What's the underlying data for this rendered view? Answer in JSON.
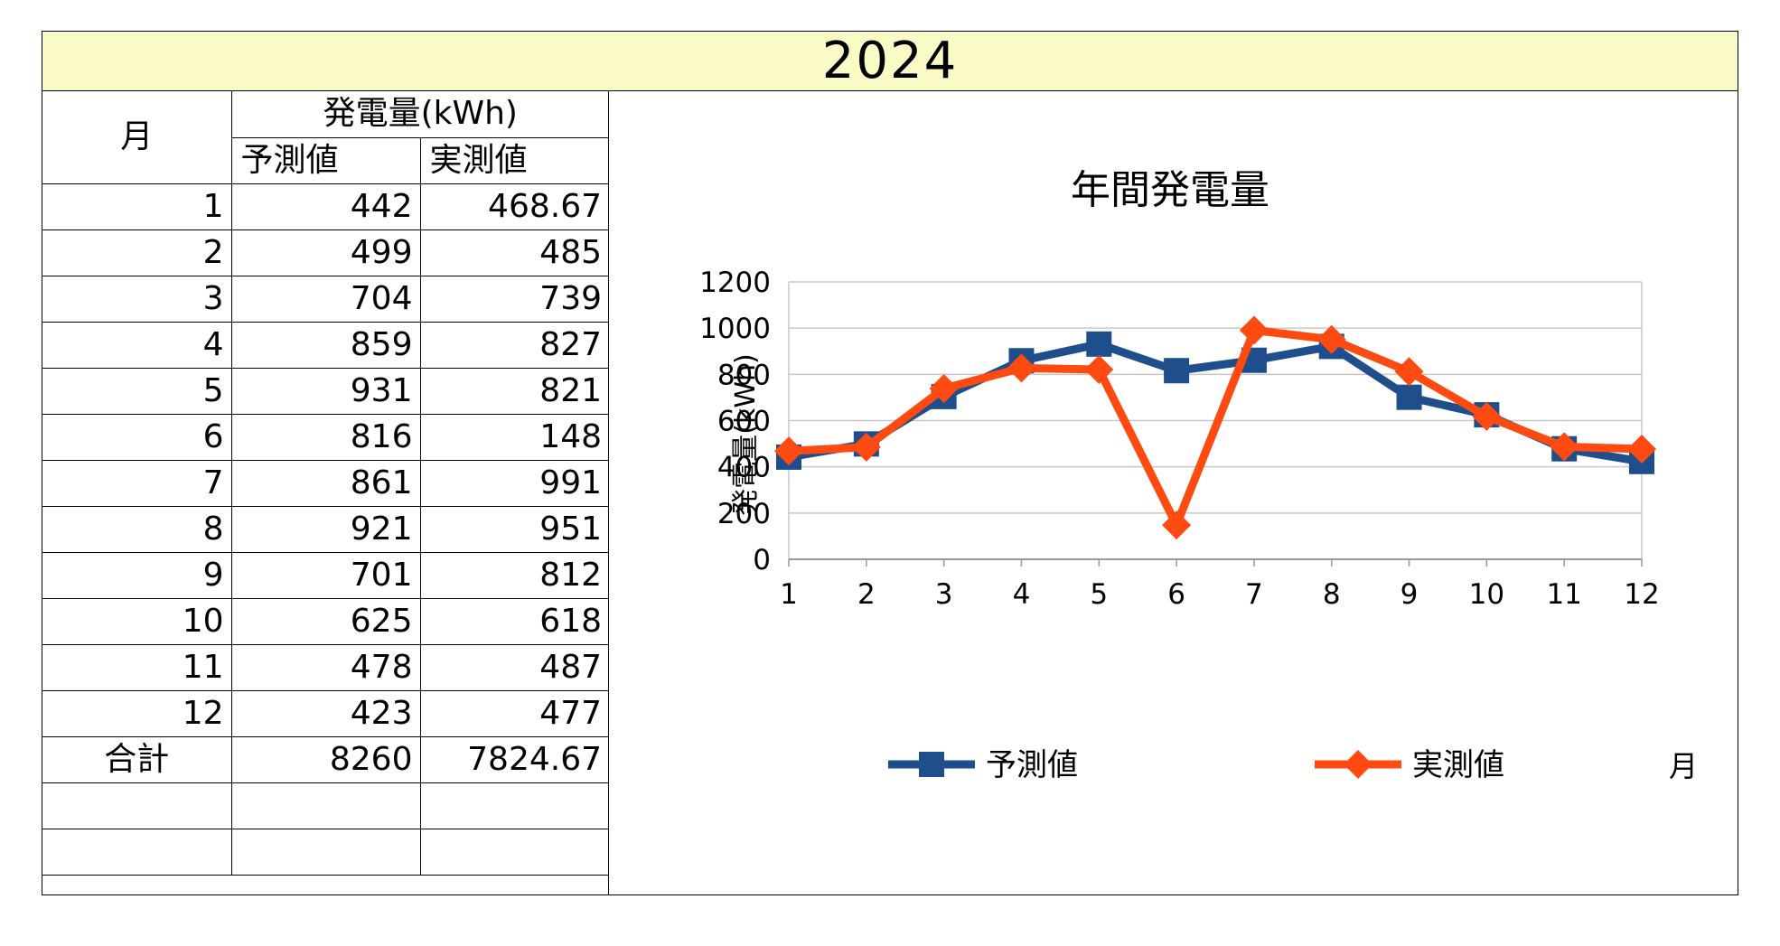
{
  "title": "2024",
  "table": {
    "month_header": "月",
    "group_header": "発電量(kWh)",
    "col_predicted": "予測値",
    "col_actual": "実測値",
    "rows": [
      {
        "m": "1",
        "p": "442",
        "a": "468.67"
      },
      {
        "m": "2",
        "p": "499",
        "a": "485"
      },
      {
        "m": "3",
        "p": "704",
        "a": "739"
      },
      {
        "m": "4",
        "p": "859",
        "a": "827"
      },
      {
        "m": "5",
        "p": "931",
        "a": "821"
      },
      {
        "m": "6",
        "p": "816",
        "a": "148"
      },
      {
        "m": "7",
        "p": "861",
        "a": "991"
      },
      {
        "m": "8",
        "p": "921",
        "a": "951"
      },
      {
        "m": "9",
        "p": "701",
        "a": "812"
      },
      {
        "m": "10",
        "p": "625",
        "a": "618"
      },
      {
        "m": "11",
        "p": "478",
        "a": "487"
      },
      {
        "m": "12",
        "p": "423",
        "a": "477"
      }
    ],
    "total_label": "合計",
    "total_predicted": "8260",
    "total_actual": "7824.67"
  },
  "chart_data": {
    "type": "line",
    "title": "年間発電量",
    "xlabel": "月",
    "ylabel": "発電量(kWh)",
    "categories": [
      "1",
      "2",
      "3",
      "4",
      "5",
      "6",
      "7",
      "8",
      "9",
      "10",
      "11",
      "12"
    ],
    "ylim": [
      0,
      1200
    ],
    "yticks": [
      0,
      200,
      400,
      600,
      800,
      1000,
      1200
    ],
    "grid": true,
    "legend_position": "bottom",
    "series": [
      {
        "name": "予測値",
        "marker": "square",
        "color": "#1f4e8c",
        "values": [
          442,
          499,
          704,
          859,
          931,
          816,
          861,
          921,
          701,
          625,
          478,
          423
        ]
      },
      {
        "name": "実測値",
        "marker": "diamond",
        "color": "#ff4a12",
        "values": [
          468.67,
          485,
          739,
          827,
          821,
          148,
          991,
          951,
          812,
          618,
          487,
          477
        ]
      }
    ]
  }
}
